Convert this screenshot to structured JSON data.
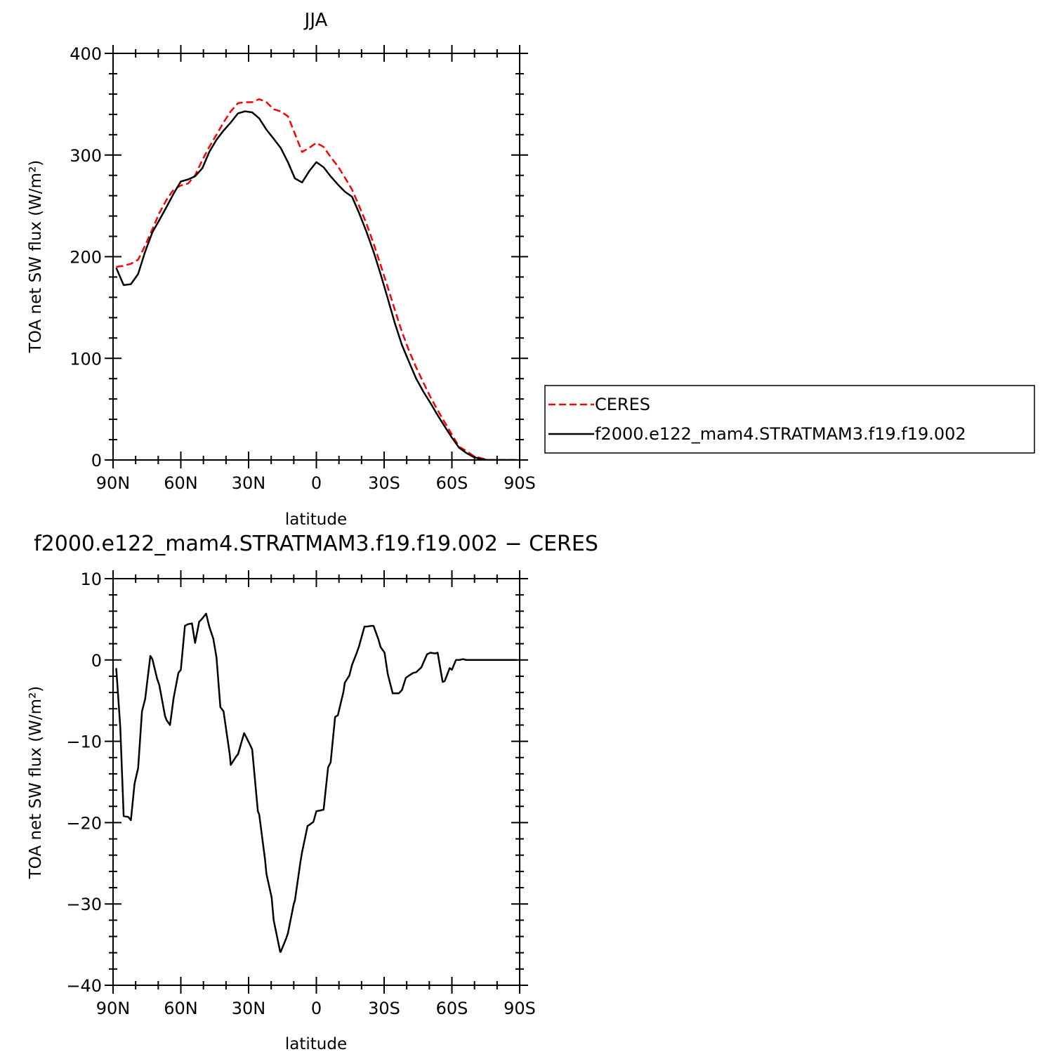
{
  "chart_data": [
    {
      "type": "line",
      "title": "JJA",
      "xlabel": "latitude",
      "ylabel": "TOA net SW flux (W/m²)",
      "xlim": [
        -90,
        90
      ],
      "ylim": [
        0,
        400
      ],
      "x_ticks": [
        -90,
        -60,
        -30,
        0,
        30,
        60,
        90
      ],
      "x_tick_labels": [
        "90N",
        "60N",
        "30N",
        "0",
        "30S",
        "60S",
        "90S"
      ],
      "y_ticks": [
        0,
        100,
        200,
        300,
        400
      ],
      "y_tick_labels": [
        "0",
        "100",
        "200",
        "300",
        "400"
      ],
      "legend": {
        "placement": "right"
      },
      "series": [
        {
          "name": "CERES",
          "color": "#ff0000",
          "style": "dashed",
          "x": [
            -88.6,
            -85.3,
            -82.1,
            -78.9,
            -75.8,
            -72.6,
            -69.5,
            -66.3,
            -63.2,
            -60.0,
            -56.8,
            -53.7,
            -50.5,
            -47.4,
            -44.2,
            -41.1,
            -37.9,
            -34.7,
            -31.6,
            -28.4,
            -25.3,
            -22.1,
            -18.9,
            -15.8,
            -12.6,
            -9.5,
            -6.3,
            -3.2,
            0.0,
            3.2,
            6.3,
            9.5,
            12.6,
            15.8,
            18.9,
            22.1,
            25.3,
            28.4,
            31.6,
            34.7,
            37.9,
            41.1,
            44.2,
            47.4,
            50.5,
            53.7,
            56.8,
            60.0,
            63.2,
            66.3,
            69.5,
            72.6,
            75.8,
            78.9,
            82.1,
            85.3,
            88.6
          ],
          "y": [
            190,
            191,
            193,
            197,
            211,
            227,
            243,
            256,
            266,
            270,
            272,
            280,
            295,
            308,
            320,
            332,
            343,
            351,
            352,
            352,
            355,
            352,
            345,
            343,
            338,
            321,
            303,
            307,
            312,
            308,
            298,
            289,
            278,
            266,
            250,
            233,
            213,
            192,
            170,
            148,
            126,
            107,
            91,
            76,
            62,
            49,
            37,
            25,
            13,
            9,
            4,
            2,
            0,
            0,
            0,
            0,
            0
          ]
        },
        {
          "name": "f2000.e122_mam4.STRATMAM3.f19.f19.002",
          "color": "#000000",
          "style": "solid",
          "x": [
            -88.6,
            -85.3,
            -82.1,
            -78.9,
            -75.8,
            -72.6,
            -69.5,
            -66.3,
            -63.2,
            -60.0,
            -56.8,
            -53.7,
            -50.5,
            -47.4,
            -44.2,
            -41.1,
            -37.9,
            -34.7,
            -31.6,
            -28.4,
            -25.3,
            -22.1,
            -18.9,
            -15.8,
            -12.6,
            -9.5,
            -6.3,
            -3.2,
            0.0,
            3.2,
            6.3,
            9.5,
            12.6,
            15.8,
            18.9,
            22.1,
            25.3,
            28.4,
            31.6,
            34.7,
            37.9,
            41.1,
            44.2,
            47.4,
            50.5,
            53.7,
            56.8,
            60.0,
            63.2,
            66.3,
            69.5,
            72.6,
            75.8,
            78.9,
            82.1,
            85.3,
            88.6
          ],
          "y": [
            189,
            172,
            173,
            183,
            205,
            224,
            236,
            249,
            262,
            274,
            276,
            279,
            287,
            303,
            315,
            324,
            332,
            341,
            343,
            342,
            336,
            325,
            316,
            307,
            293,
            277,
            273,
            284,
            293,
            288,
            279,
            271,
            264,
            259,
            243,
            225,
            205,
            183,
            159,
            135,
            113,
            96,
            80,
            67,
            56,
            44,
            33,
            22,
            12,
            7,
            3,
            1,
            0,
            0,
            0,
            0,
            0
          ]
        }
      ]
    },
    {
      "type": "line",
      "title": "f2000.e122_mam4.STRATMAM3.f19.f19.002 − CERES",
      "xlabel": "latitude",
      "ylabel": "TOA net SW flux (W/m²)",
      "xlim": [
        -90,
        90
      ],
      "ylim": [
        -40,
        10
      ],
      "x_ticks": [
        -90,
        -60,
        -30,
        0,
        30,
        60,
        90
      ],
      "x_tick_labels": [
        "90N",
        "60N",
        "30N",
        "0",
        "30S",
        "60S",
        "90S"
      ],
      "y_ticks": [
        -40,
        -30,
        -20,
        -10,
        0,
        10
      ],
      "y_tick_labels": [
        "−40",
        "−30",
        "−20",
        "−10",
        "0",
        "10"
      ],
      "series": [
        {
          "color": "#000000",
          "style": "solid",
          "x": [
            -88.6,
            -86.8,
            -85.3,
            -83.3,
            -82.1,
            -80.5,
            -78.9,
            -77.2,
            -75.8,
            -73.5,
            -72.6,
            -70.5,
            -69.5,
            -67.0,
            -66.3,
            -64.8,
            -63.2,
            -61.1,
            -60.0,
            -58.2,
            -56.8,
            -55.1,
            -53.7,
            -51.9,
            -50.5,
            -48.8,
            -47.4,
            -45.6,
            -44.2,
            -42.5,
            -41.1,
            -38.3,
            -37.9,
            -35.6,
            -34.7,
            -32.0,
            -31.6,
            -29.4,
            -28.4,
            -25.9,
            -25.3,
            -22.7,
            -22.1,
            -19.8,
            -18.9,
            -16.0,
            -15.8,
            -13.3,
            -12.6,
            -10.0,
            -9.5,
            -7.1,
            -6.3,
            -3.9,
            -3.2,
            -1.3,
            0.0,
            1.8,
            3.2,
            5.2,
            6.3,
            8.3,
            9.5,
            12.0,
            12.6,
            14.6,
            15.8,
            17.9,
            18.9,
            21.3,
            22.1,
            24.4,
            25.3,
            27.5,
            28.4,
            30.2,
            31.6,
            33.8,
            34.7,
            36.5,
            37.9,
            39.6,
            41.1,
            42.8,
            44.2,
            46.5,
            47.4,
            49.0,
            50.5,
            52.5,
            53.7,
            55.9,
            56.8,
            59.0,
            60.0,
            61.8,
            63.2,
            64.9,
            66.3,
            68.3,
            69.5,
            71.4,
            72.6,
            74.5,
            75.8,
            77.8,
            78.9,
            80.8,
            82.1,
            84.0,
            85.3,
            87.1,
            88.6
          ],
          "y": [
            -1.0,
            -8.3,
            -19.2,
            -19.3,
            -19.7,
            -15.2,
            -13.3,
            -6.3,
            -4.8,
            0.5,
            0.1,
            -2.3,
            -3.1,
            -6.9,
            -7.4,
            -8.0,
            -4.7,
            -1.6,
            -1.2,
            4.2,
            4.4,
            4.5,
            2.1,
            4.7,
            5.1,
            5.7,
            4.1,
            2.6,
            0.3,
            -5.8,
            -6.3,
            -11.7,
            -12.9,
            -11.9,
            -11.6,
            -9.0,
            -9.2,
            -10.4,
            -11.0,
            -18.6,
            -19.0,
            -24.6,
            -26.3,
            -29.2,
            -32.0,
            -35.9,
            -35.9,
            -34.2,
            -33.6,
            -30.0,
            -29.6,
            -24.9,
            -23.6,
            -20.4,
            -20.3,
            -19.9,
            -18.6,
            -18.5,
            -18.4,
            -13.2,
            -12.6,
            -7.0,
            -6.8,
            -3.9,
            -2.8,
            -1.9,
            -0.6,
            0.9,
            1.7,
            4.1,
            4.1,
            4.2,
            4.2,
            2.5,
            1.6,
            0.9,
            -1.7,
            -4.1,
            -4.1,
            -4.1,
            -3.7,
            -2.2,
            -1.9,
            -1.6,
            -1.5,
            -0.9,
            -0.3,
            0.7,
            0.9,
            0.8,
            0.9,
            -2.7,
            -2.6,
            -1.0,
            -1.2,
            0.0,
            0.0,
            0.1,
            0.0,
            0.0,
            0.0,
            0.0,
            0.0,
            0.0,
            0.0,
            0.0,
            0.0,
            0.0,
            0.0,
            0.0,
            0.0,
            0.0,
            0.0
          ]
        }
      ]
    }
  ]
}
